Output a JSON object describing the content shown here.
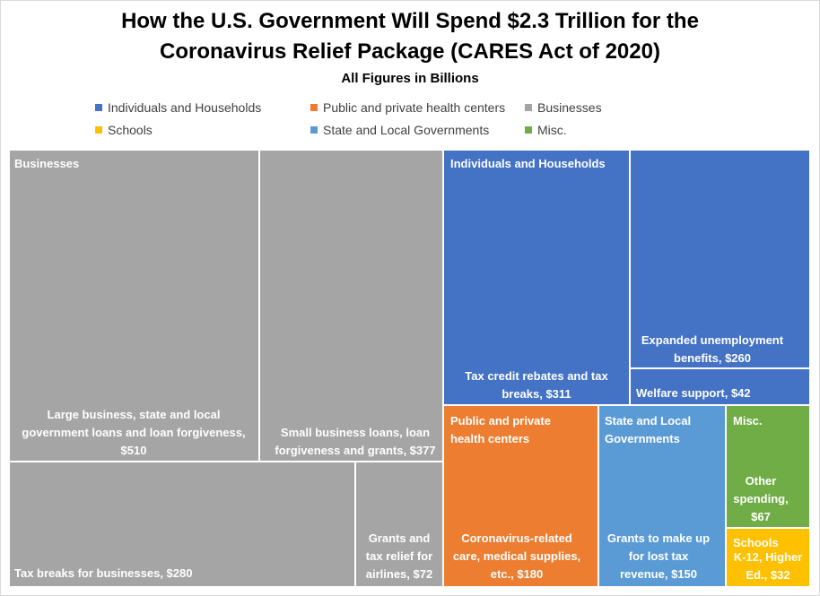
{
  "chart_data": {
    "type": "treemap",
    "title": "How the U.S. Government Will Spend $2.3 Trillion for the Coronavirus Relief Package (CARES Act of 2020)",
    "title_lines": [
      "How the U.S. Government Will Spend $2.3 Trillion for the",
      "Coronavirus Relief Package (CARES Act of 2020)"
    ],
    "subtitle": "All Figures in Billions",
    "legend_placement": "top",
    "legend": [
      {
        "name": "Individuals and Households",
        "color": "#4472C4"
      },
      {
        "name": "Public and private health centers",
        "color": "#ED7D31"
      },
      {
        "name": "Businesses",
        "color": "#A5A5A5"
      },
      {
        "name": "Schools",
        "color": "#FFC000"
      },
      {
        "name": "State and Local Governments",
        "color": "#5B9BD5"
      },
      {
        "name": "Misc.",
        "color": "#70AD47"
      }
    ],
    "groups": [
      {
        "name": "Businesses",
        "header": [
          "Businesses"
        ],
        "color": "#A5A5A5",
        "items": [
          {
            "label": [
              "Large business, state and local",
              "government loans and loan forgiveness,",
              "$510"
            ],
            "value": 510
          },
          {
            "label": [
              "Small business loans, loan",
              "forgiveness and grants, $377"
            ],
            "value": 377
          },
          {
            "label": [
              "Tax breaks for businesses, $280"
            ],
            "value": 280
          },
          {
            "label": [
              "Grants and",
              "tax relief for",
              "airlines, $72"
            ],
            "value": 72
          }
        ]
      },
      {
        "name": "Individuals and Households",
        "header": [
          "Individuals and Households"
        ],
        "color": "#4472C4",
        "items": [
          {
            "label": [
              "Tax credit rebates and tax",
              "breaks, $311"
            ],
            "value": 311
          },
          {
            "label": [
              "Expanded unemployment",
              "benefits, $260"
            ],
            "value": 260
          },
          {
            "label": [
              "Welfare support, $42"
            ],
            "value": 42
          }
        ]
      },
      {
        "name": "Public and private health centers",
        "header": [
          "Public and private",
          "health centers"
        ],
        "color": "#ED7D31",
        "items": [
          {
            "label": [
              "Coronavirus-related",
              "care, medical supplies,",
              "etc., $180"
            ],
            "value": 180
          }
        ]
      },
      {
        "name": "State and Local Governments",
        "header": [
          "State and Local",
          "Governments"
        ],
        "color": "#5B9BD5",
        "items": [
          {
            "label": [
              "Grants to make up",
              "for lost tax",
              "revenue, $150"
            ],
            "value": 150
          }
        ]
      },
      {
        "name": "Misc.",
        "header": [
          "Misc."
        ],
        "color": "#70AD47",
        "items": [
          {
            "label": [
              "Other",
              "spending,",
              "$67"
            ],
            "value": 67
          }
        ]
      },
      {
        "name": "Schools",
        "header": [
          "Schools"
        ],
        "color": "#FFC000",
        "items": [
          {
            "label": [
              "K-12, Higher",
              "Ed., $32"
            ],
            "value": 32
          }
        ]
      }
    ]
  }
}
